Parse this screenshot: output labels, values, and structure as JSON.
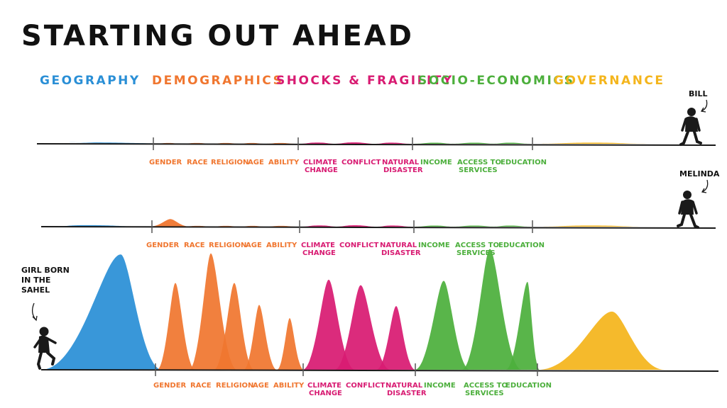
{
  "title": "STARTING OUT AHEAD",
  "colors": {
    "geography": "#2a8fd6",
    "demographics": "#f0762f",
    "shocks": "#d81b72",
    "socio": "#4caf3c",
    "governance": "#f4b51c",
    "ink": "#1a1a1a"
  },
  "legend": [
    {
      "label": "GEOGRAPHY",
      "color": "#2a8fd6"
    },
    {
      "label": "DEMOGRAPHICS",
      "color": "#f0762f"
    },
    {
      "label": "SHOCKS & FRAGILITY",
      "color": "#d81b72"
    },
    {
      "label": "SOCIO-ECONOMICS",
      "color": "#4caf3c"
    },
    {
      "label": "GOVERNANCE",
      "color": "#f4b51c"
    }
  ],
  "factor_labels": [
    {
      "text": "GENDER",
      "group": "demographics"
    },
    {
      "text": "RACE",
      "group": "demographics"
    },
    {
      "text": "RELIGION",
      "group": "demographics"
    },
    {
      "text": "AGE",
      "group": "demographics"
    },
    {
      "text": "ABILITY",
      "group": "demographics"
    },
    {
      "text": "CLIMATE",
      "text2": "CHANGE",
      "group": "shocks"
    },
    {
      "text": "CONFLICT",
      "group": "shocks"
    },
    {
      "text": "NATURAL",
      "text2": "DISASTER",
      "group": "shocks"
    },
    {
      "text": "INCOME",
      "group": "socio"
    },
    {
      "text": "ACCESS TO",
      "text2": "SERVICES",
      "group": "socio"
    },
    {
      "text": "EDUCATION",
      "group": "socio"
    }
  ],
  "people": [
    {
      "name": "BILL"
    },
    {
      "name": "MELINDA"
    },
    {
      "name": "GIRL BORN",
      "name2": "IN THE",
      "name3": "SAHEL"
    }
  ],
  "chart_data": {
    "type": "area",
    "title": "STARTING OUT AHEAD",
    "categories": [
      "GEOGRAPHY",
      "GENDER",
      "RACE",
      "RELIGION",
      "AGE",
      "ABILITY",
      "CLIMATE CHANGE",
      "CONFLICT",
      "NATURAL DISASTER",
      "INCOME",
      "ACCESS TO SERVICES",
      "EDUCATION",
      "GOVERNANCE"
    ],
    "groups": [
      "GEOGRAPHY",
      "DEMOGRAPHICS",
      "DEMOGRAPHICS",
      "DEMOGRAPHICS",
      "DEMOGRAPHICS",
      "DEMOGRAPHICS",
      "SHOCKS & FRAGILITY",
      "SHOCKS & FRAGILITY",
      "SHOCKS & FRAGILITY",
      "SOCIO-ECONOMICS",
      "SOCIO-ECONOMICS",
      "SOCIO-ECONOMICS",
      "GOVERNANCE"
    ],
    "series": [
      {
        "name": "BILL",
        "values": [
          1.2,
          0.6,
          0.6,
          0.6,
          0.6,
          0.6,
          1.0,
          1.1,
          0.9,
          0.8,
          0.8,
          0.8,
          0.9
        ]
      },
      {
        "name": "MELINDA",
        "values": [
          1.2,
          6.0,
          0.6,
          0.6,
          0.6,
          0.6,
          1.0,
          1.1,
          0.9,
          0.8,
          0.8,
          0.8,
          0.9
        ]
      },
      {
        "name": "GIRL BORN IN THE SAHEL",
        "values": [
          10.5,
          7.9,
          10.6,
          7.9,
          5.9,
          4.7,
          8.2,
          7.7,
          5.8,
          8.1,
          11.0,
          8.0,
          5.3
        ]
      }
    ],
    "ylim": [
      0,
      12
    ]
  }
}
